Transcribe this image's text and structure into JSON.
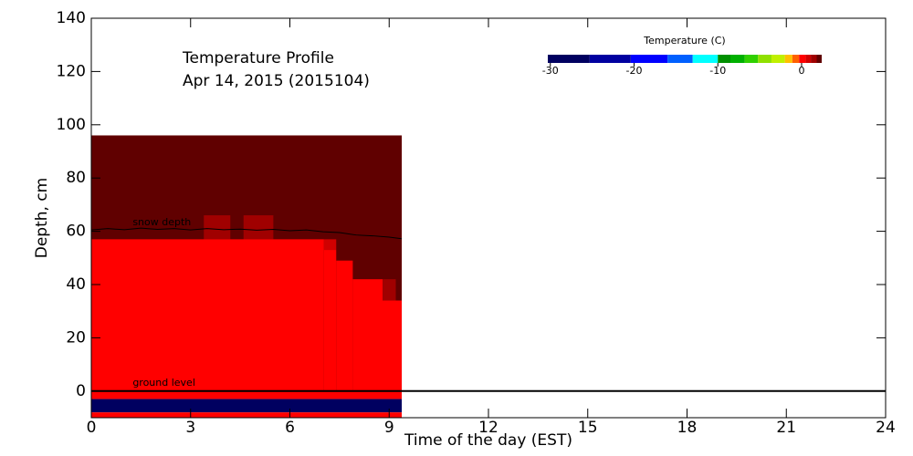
{
  "chart_data": {
    "type": "heatmap",
    "title": "Temperature Profile",
    "subtitle": "Apr 14, 2015 (2015104)",
    "x_label": "Time of the day (EST)",
    "y_label": "Depth, cm",
    "xlim": [
      0,
      24
    ],
    "xticks": [
      0,
      3,
      6,
      9,
      12,
      15,
      18,
      21,
      24
    ],
    "ylim": [
      -10,
      140
    ],
    "yticks": [
      0,
      20,
      40,
      60,
      80,
      100,
      120,
      140
    ],
    "colorbar": {
      "label": "Temperature (C)",
      "edges": [
        -30.3,
        -25.3,
        -20.4,
        -16,
        -13,
        -10,
        -8.5,
        -6.8,
        -5.2,
        -3.6,
        -2,
        -1.1,
        -0.3,
        0.5,
        1.1,
        1.8,
        2.4
      ],
      "colors": [
        "#000060",
        "#0000a0",
        "#0000ff",
        "#0060ff",
        "#00ffff",
        "#009000",
        "#00b000",
        "#30d000",
        "#90e000",
        "#c0f000",
        "#ffc000",
        "#ff6000",
        "#ff0000",
        "#d00000",
        "#a00000",
        "#600000"
      ],
      "ticks": [
        -30,
        -20,
        -10,
        0
      ]
    },
    "cells": [
      {
        "t0": 0,
        "t1": 9.38,
        "d0": 0,
        "d1": 96,
        "value": 2.2
      },
      {
        "t0": 3.4,
        "t1": 4.2,
        "d0": 57,
        "d1": 66,
        "value": 1.5
      },
      {
        "t0": 4.6,
        "t1": 5.5,
        "d0": 57,
        "d1": 66,
        "value": 1.5
      },
      {
        "t0": 0,
        "t1": 7.03,
        "d0": 0,
        "d1": 57,
        "value": 0.1
      },
      {
        "t0": 7.03,
        "t1": 7.4,
        "d0": 0,
        "d1": 53,
        "value": 0.1
      },
      {
        "t0": 7.03,
        "t1": 7.4,
        "d0": 53,
        "d1": 57,
        "value": 0.8
      },
      {
        "t0": 7.4,
        "t1": 7.9,
        "d0": 0,
        "d1": 49,
        "value": 0.1
      },
      {
        "t0": 7.9,
        "t1": 8.8,
        "d0": 0,
        "d1": 42,
        "value": 0.1
      },
      {
        "t0": 8.8,
        "t1": 9.38,
        "d0": 0,
        "d1": 34,
        "value": 0.1
      },
      {
        "t0": 8.8,
        "t1": 9.2,
        "d0": 34,
        "d1": 42,
        "value": 1.4
      },
      {
        "t0": 0,
        "t1": 9.38,
        "d0": -3,
        "d1": 0,
        "value": 0.1
      },
      {
        "t0": 0,
        "t1": 9.38,
        "d0": -8,
        "d1": -3,
        "value": -28
      },
      {
        "t0": 0,
        "t1": 9.38,
        "d0": -10,
        "d1": -8,
        "value": 0.1
      }
    ],
    "snow_depth": {
      "name": "snow depth",
      "x": [
        0,
        0.5,
        1,
        1.5,
        2,
        2.5,
        3,
        3.5,
        4,
        4.5,
        5,
        5.5,
        6,
        6.5,
        7,
        7.5,
        8,
        8.5,
        9,
        9.38
      ],
      "values": [
        60.5,
        61,
        60.6,
        61.2,
        60.7,
        61,
        60.5,
        61,
        60.6,
        60.8,
        60.4,
        60.7,
        60.2,
        60.5,
        59.8,
        59.5,
        58.6,
        58.3,
        57.8,
        57.2
      ]
    },
    "ground_level": {
      "name": "ground level",
      "value": 0
    }
  }
}
